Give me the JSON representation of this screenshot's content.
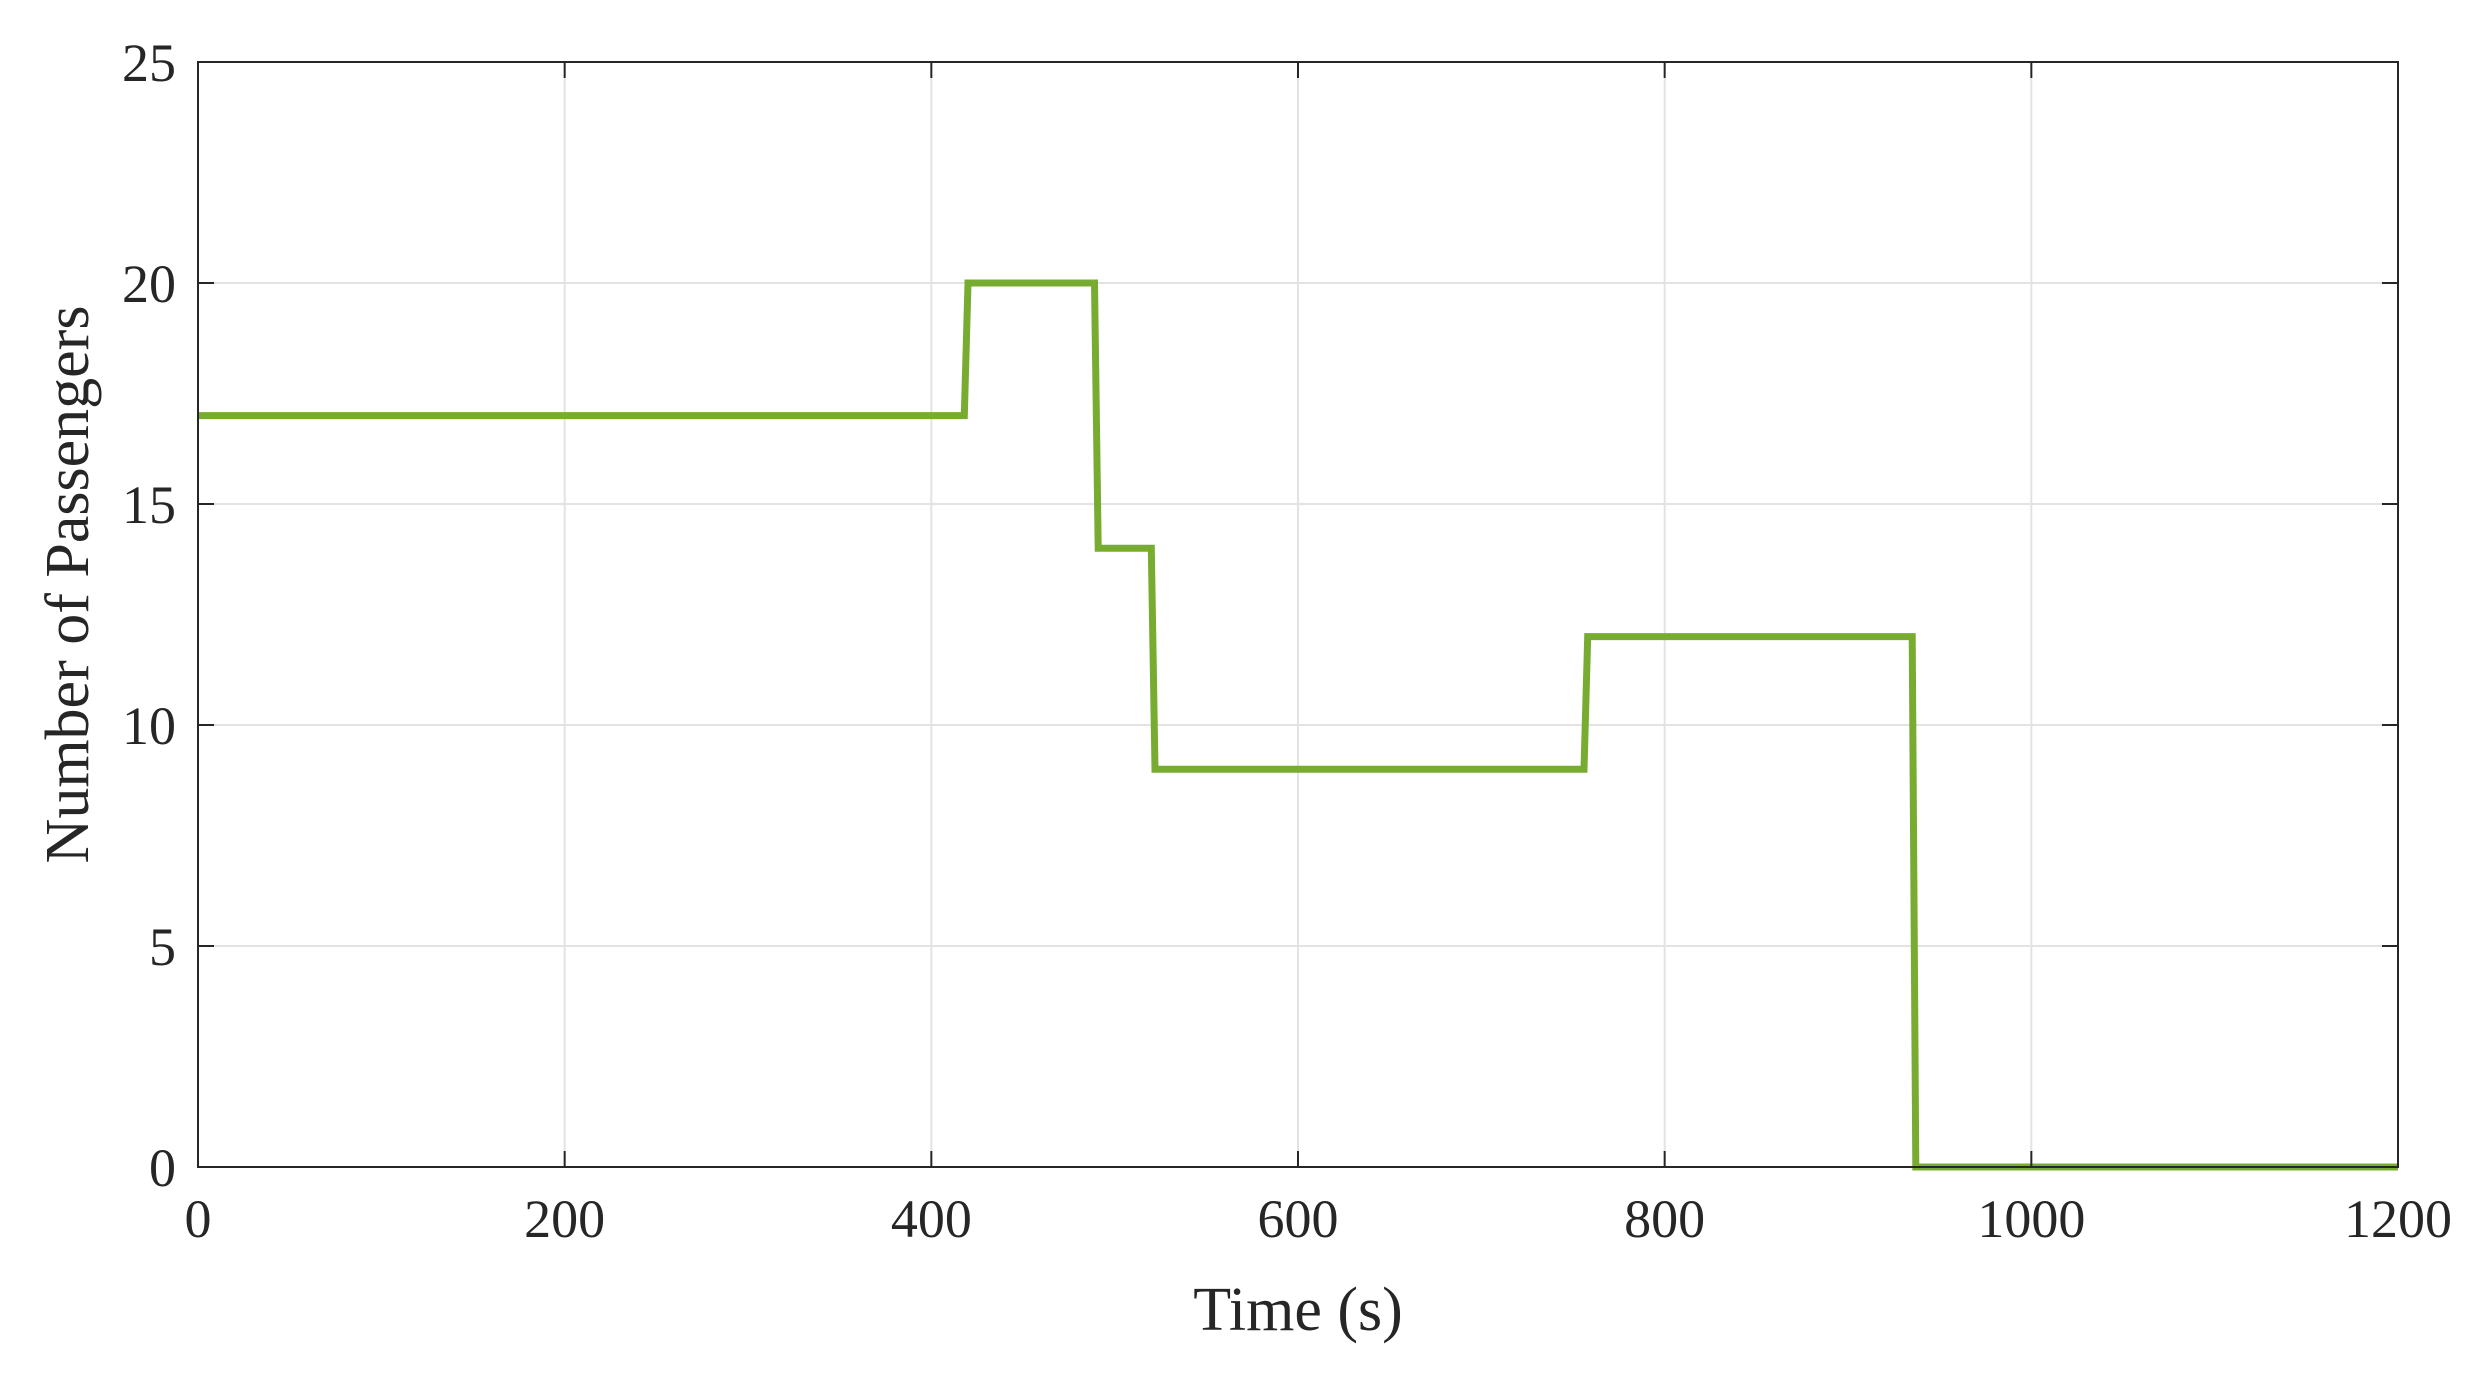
{
  "chart_data": {
    "type": "line",
    "title": "",
    "xlabel": "Time (s)",
    "ylabel": "Number of Passengers",
    "xlim": [
      0,
      1200
    ],
    "ylim": [
      0,
      25
    ],
    "xticks": [
      0,
      200,
      400,
      600,
      800,
      1000,
      1200
    ],
    "yticks": [
      0,
      5,
      10,
      15,
      20,
      25
    ],
    "grid": true,
    "legend": "none",
    "colors": {
      "line": "#77ac30",
      "grid": "#e3e3e3",
      "axis": "#262626"
    },
    "series": [
      {
        "x": [
          0,
          418,
          420,
          489,
          491,
          520,
          522,
          756,
          758,
          935,
          937,
          1200
        ],
        "y": [
          17,
          17,
          20,
          20,
          14,
          14,
          9,
          9,
          12,
          12,
          0,
          0
        ]
      }
    ]
  }
}
